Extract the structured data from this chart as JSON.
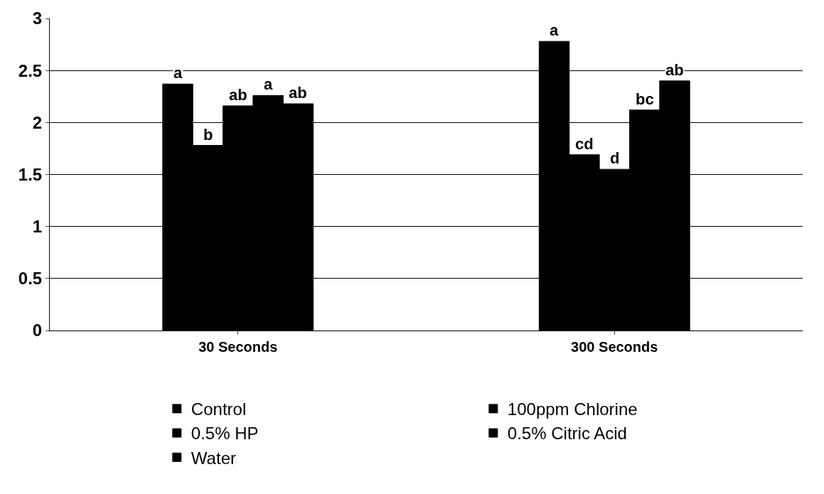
{
  "chart_data": {
    "type": "bar",
    "categories": [
      "30 Seconds",
      "300 Seconds"
    ],
    "series": [
      {
        "name": "Control",
        "color": "#000000",
        "values": [
          2.37,
          2.78
        ],
        "value_labels": [
          "a",
          "a"
        ]
      },
      {
        "name": "100ppm Chlorine",
        "color": "#000000",
        "values": [
          1.78,
          1.69
        ],
        "value_labels": [
          "b",
          "cd"
        ]
      },
      {
        "name": "0.5% HP",
        "color": "#000000",
        "values": [
          2.16,
          1.55
        ],
        "value_labels": [
          "ab",
          "d"
        ]
      },
      {
        "name": "0.5% Citric Acid",
        "color": "#000000",
        "values": [
          2.26,
          2.12
        ],
        "value_labels": [
          "a",
          "bc"
        ]
      },
      {
        "name": "Water",
        "color": "#000000",
        "values": [
          2.18,
          2.4
        ],
        "value_labels": [
          "ab",
          "ab"
        ]
      }
    ],
    "ylim": [
      0,
      3
    ],
    "yticks": [
      0,
      0.5,
      1,
      1.5,
      2,
      2.5,
      3
    ],
    "grid": "y",
    "legend": "bottom"
  }
}
